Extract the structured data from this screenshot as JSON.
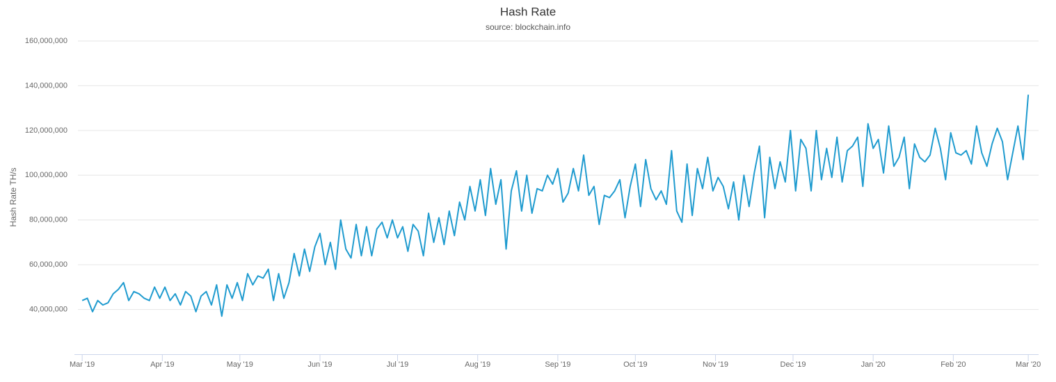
{
  "chart_data": {
    "type": "line",
    "title": "Hash Rate",
    "subtitle": "source: blockchain.info",
    "y_label": "Hash Rate TH/s",
    "x": [
      0,
      2,
      4,
      6,
      8,
      10,
      12,
      14,
      16,
      18,
      20,
      22,
      24,
      26,
      28,
      30,
      32,
      34,
      36,
      38,
      40,
      42,
      44,
      46,
      48,
      50,
      52,
      54,
      56,
      58,
      60,
      62,
      64,
      66,
      68,
      70,
      72,
      74,
      76,
      78,
      80,
      82,
      84,
      86,
      88,
      90,
      92,
      94,
      96,
      98,
      100,
      102,
      104,
      106,
      108,
      110,
      112,
      114,
      116,
      118,
      120,
      122,
      124,
      126,
      128,
      130,
      132,
      134,
      136,
      138,
      140,
      142,
      144,
      146,
      148,
      150,
      152,
      154,
      156,
      158,
      160,
      162,
      164,
      166,
      168,
      170,
      172,
      174,
      176,
      178,
      180,
      182,
      184,
      186,
      188,
      190,
      192,
      194,
      196,
      198,
      200,
      202,
      204,
      206,
      208,
      210,
      212,
      214,
      216,
      218,
      220,
      222,
      224,
      226,
      228,
      230,
      232,
      234,
      236,
      238,
      240,
      242,
      244,
      246,
      248,
      250,
      252,
      254,
      256,
      258,
      260,
      262,
      264,
      266,
      268,
      270,
      272,
      274,
      276,
      278,
      280,
      282,
      284,
      286,
      288,
      290,
      292,
      294,
      296,
      298,
      300,
      302,
      304,
      306,
      308,
      310,
      312,
      314,
      316,
      318,
      320,
      322,
      324,
      326,
      328,
      330,
      332,
      334,
      336,
      338,
      340,
      342,
      344,
      346,
      348,
      350,
      352,
      354,
      356,
      358,
      360,
      362,
      364,
      366
    ],
    "series": [
      {
        "name": "Hash Rate",
        "color": "#1f9bcf",
        "values": [
          44000000,
          45000000,
          39000000,
          44000000,
          42000000,
          43000000,
          47000000,
          49000000,
          52000000,
          44000000,
          48000000,
          47000000,
          45000000,
          44000000,
          50000000,
          45000000,
          50000000,
          44000000,
          47000000,
          42000000,
          48000000,
          46000000,
          39000000,
          46000000,
          48000000,
          42000000,
          51000000,
          37000000,
          51000000,
          45000000,
          52000000,
          44000000,
          56000000,
          51000000,
          55000000,
          54000000,
          58000000,
          44000000,
          56000000,
          45000000,
          52000000,
          65000000,
          55000000,
          67000000,
          57000000,
          68000000,
          74000000,
          60000000,
          70000000,
          58000000,
          80000000,
          67000000,
          63000000,
          78000000,
          64000000,
          77000000,
          64000000,
          76000000,
          79000000,
          72000000,
          80000000,
          72000000,
          77000000,
          66000000,
          78000000,
          75000000,
          64000000,
          83000000,
          70000000,
          81000000,
          69000000,
          84000000,
          73000000,
          88000000,
          80000000,
          95000000,
          84000000,
          98000000,
          82000000,
          103000000,
          87000000,
          98000000,
          67000000,
          93000000,
          102000000,
          84000000,
          100000000,
          83000000,
          94000000,
          93000000,
          100000000,
          96000000,
          103000000,
          88000000,
          92000000,
          103000000,
          93000000,
          109000000,
          91000000,
          95000000,
          78000000,
          91000000,
          90000000,
          93000000,
          98000000,
          81000000,
          95000000,
          105000000,
          86000000,
          107000000,
          94000000,
          89000000,
          93000000,
          87000000,
          111000000,
          84000000,
          79000000,
          105000000,
          82000000,
          103000000,
          94000000,
          108000000,
          93000000,
          99000000,
          95000000,
          85000000,
          97000000,
          80000000,
          100000000,
          86000000,
          101000000,
          113000000,
          81000000,
          108000000,
          94000000,
          106000000,
          97000000,
          120000000,
          93000000,
          116000000,
          112000000,
          93000000,
          120000000,
          98000000,
          112000000,
          99000000,
          117000000,
          97000000,
          111000000,
          113000000,
          117000000,
          95000000,
          123000000,
          112000000,
          116000000,
          101000000,
          122000000,
          104000000,
          108000000,
          117000000,
          94000000,
          114000000,
          108000000,
          106000000,
          109000000,
          121000000,
          112000000,
          98000000,
          119000000,
          110000000,
          109000000,
          111000000,
          105000000,
          122000000,
          110000000,
          104000000,
          114000000,
          121000000,
          115000000,
          98000000,
          110000000,
          122000000,
          107000000,
          136000000
        ]
      }
    ],
    "xlim": [
      -3,
      370
    ],
    "xticks": [
      {
        "value": 0,
        "label": "Mar '19"
      },
      {
        "value": 31,
        "label": "Apr '19"
      },
      {
        "value": 61,
        "label": "May '19"
      },
      {
        "value": 92,
        "label": "Jun '19"
      },
      {
        "value": 122,
        "label": "Jul '19"
      },
      {
        "value": 153,
        "label": "Aug '19"
      },
      {
        "value": 184,
        "label": "Sep '19"
      },
      {
        "value": 214,
        "label": "Oct '19"
      },
      {
        "value": 245,
        "label": "Nov '19"
      },
      {
        "value": 275,
        "label": "Dec '19"
      },
      {
        "value": 306,
        "label": "Jan '20"
      },
      {
        "value": 337,
        "label": "Feb '20"
      },
      {
        "value": 366,
        "label": "Mar '20"
      }
    ],
    "ylim": [
      20000000,
      160000000
    ],
    "yticks": [
      {
        "value": 40000000,
        "label": "40,000,000"
      },
      {
        "value": 60000000,
        "label": "60,000,000"
      },
      {
        "value": 80000000,
        "label": "80,000,000"
      },
      {
        "value": 100000000,
        "label": "100,000,000"
      },
      {
        "value": 120000000,
        "label": "120,000,000"
      },
      {
        "value": 140000000,
        "label": "140,000,000"
      },
      {
        "value": 160000000,
        "label": "160,000,000"
      }
    ],
    "grid": true
  }
}
